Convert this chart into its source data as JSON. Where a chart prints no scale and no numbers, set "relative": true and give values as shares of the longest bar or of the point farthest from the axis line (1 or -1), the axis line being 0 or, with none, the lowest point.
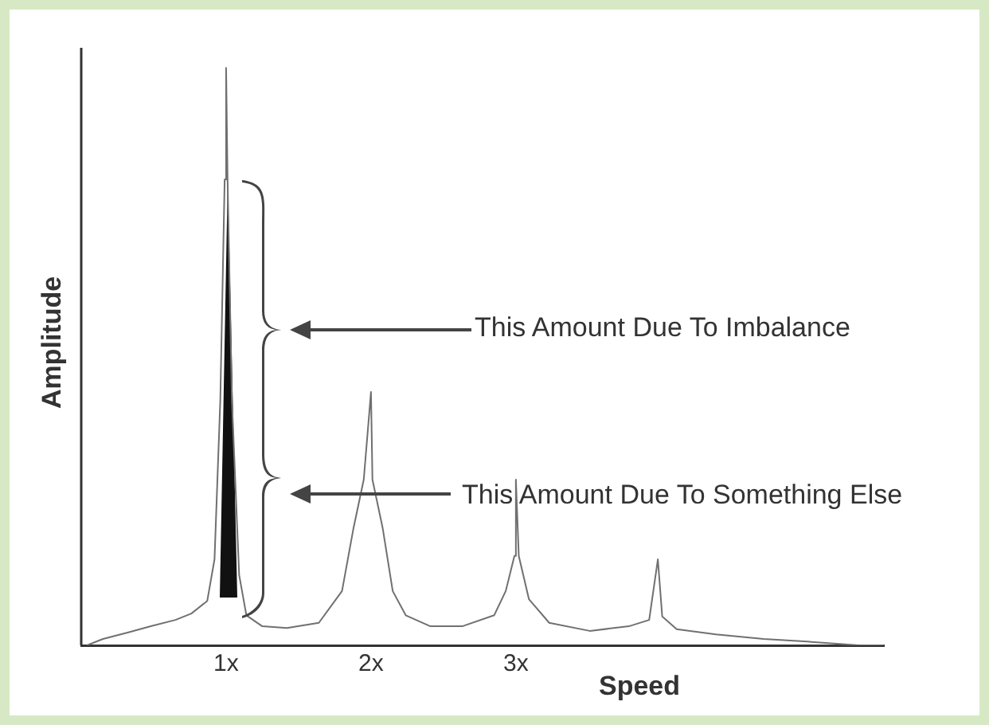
{
  "chart_data": {
    "type": "line",
    "relative": true,
    "xlabel": "Speed",
    "ylabel": "Amplitude",
    "xlim": [
      0,
      5.54
    ],
    "xticks": [
      {
        "value": 1,
        "label": "1x"
      },
      {
        "value": 2,
        "label": "2x"
      },
      {
        "value": 3,
        "label": "3x"
      }
    ],
    "annotations": [
      "This Amount Due To Imbalance",
      "This Amount Due To Something Else"
    ],
    "grid": false,
    "legend": false,
    "marker": "none",
    "line_style": "solid",
    "series": [
      {
        "color": "#707070",
        "x": [
          0.04,
          0.15,
          0.32,
          0.48,
          0.65,
          0.76,
          0.87,
          0.92,
          0.96,
          0.99,
          1.0,
          1.01,
          1.04,
          1.09,
          1.14,
          1.25,
          1.42,
          1.64,
          1.8,
          1.88,
          1.95,
          2.0,
          2.01,
          2.08,
          2.15,
          2.24,
          2.41,
          2.63,
          2.85,
          2.93,
          2.99,
          3.0,
          3.02,
          3.09,
          3.23,
          3.51,
          3.78,
          3.92,
          3.98,
          4.01,
          4.11,
          4.38,
          4.71,
          5.04,
          5.37,
          5.54
        ],
        "values": [
          0,
          0.011,
          0.022,
          0.033,
          0.044,
          0.055,
          0.077,
          0.149,
          0.425,
          0.807,
          1,
          0.807,
          0.425,
          0.122,
          0.052,
          0.033,
          0.03,
          0.039,
          0.094,
          0.204,
          0.287,
          0.439,
          0.287,
          0.204,
          0.094,
          0.052,
          0.033,
          0.033,
          0.052,
          0.094,
          0.155,
          0.287,
          0.155,
          0.08,
          0.039,
          0.025,
          0.033,
          0.044,
          0.149,
          0.05,
          0.028,
          0.019,
          0.011,
          0.006,
          0,
          0
        ]
      }
    ]
  }
}
